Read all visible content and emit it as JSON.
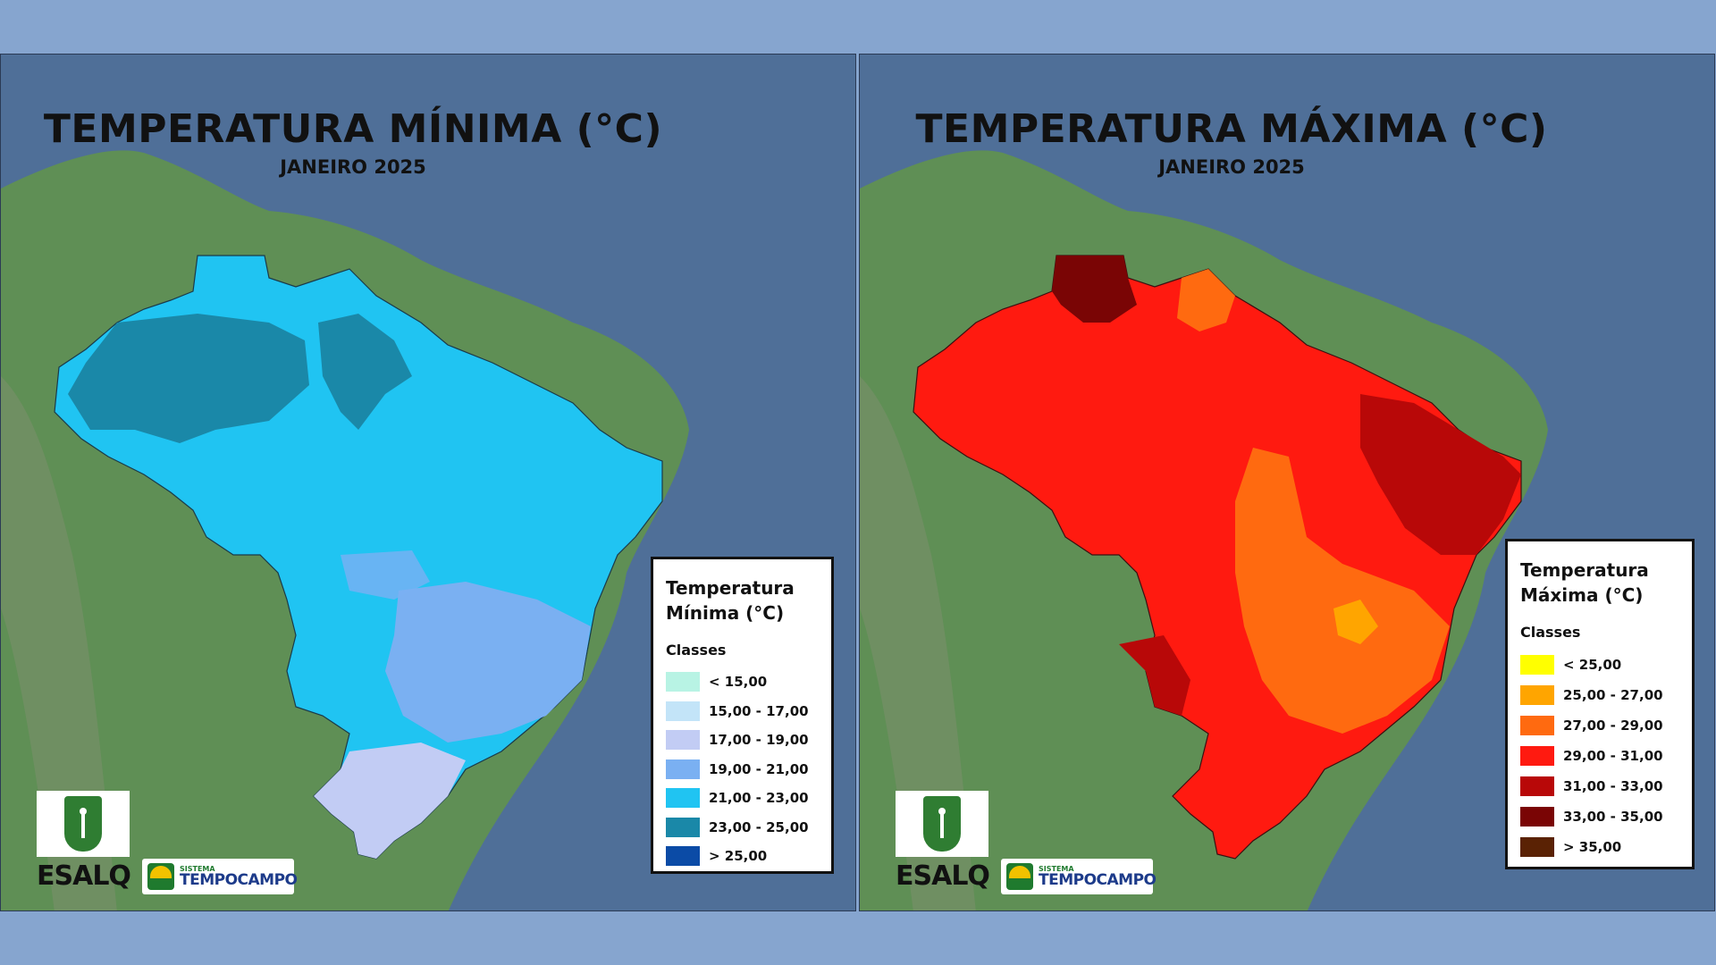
{
  "colors": {
    "page_background": "#86a5cf",
    "ocean": "#4f6f98",
    "land": "#5f8f55"
  },
  "maps": [
    {
      "id": "min",
      "title": "TEMPERATURA MÍNIMA (°C)",
      "subtitle": "JANEIRO 2025",
      "legend": {
        "title_line1": "Temperatura",
        "title_line2": "Mínima (°C)",
        "classes_label": "Classes",
        "items": [
          {
            "label": "< 15,00",
            "color": "#b8f3e4"
          },
          {
            "label": "15,00 - 17,00",
            "color": "#c3e4f8"
          },
          {
            "label": "17,00 - 19,00",
            "color": "#c2ccf4"
          },
          {
            "label": "19,00 - 21,00",
            "color": "#7ab0f2"
          },
          {
            "label": "21,00 - 23,00",
            "color": "#20c4f2"
          },
          {
            "label": "23,00 - 25,00",
            "color": "#1a88a8"
          },
          {
            "label": "> 25,00",
            "color": "#0b4ba6"
          }
        ]
      },
      "base_color": "#20c4f2"
    },
    {
      "id": "max",
      "title": "TEMPERATURA MÁXIMA (°C)",
      "subtitle": "JANEIRO 2025",
      "legend": {
        "title_line1": "Temperatura",
        "title_line2": "Máxima (°C)",
        "classes_label": "Classes",
        "items": [
          {
            "label": "< 25,00",
            "color": "#ffff00"
          },
          {
            "label": "25,00 - 27,00",
            "color": "#ffa500"
          },
          {
            "label": "27,00 - 29,00",
            "color": "#ff6a10"
          },
          {
            "label": "29,00 - 31,00",
            "color": "#ff1a10"
          },
          {
            "label": "31,00 - 33,00",
            "color": "#b80808"
          },
          {
            "label": "33,00 - 35,00",
            "color": "#7a0505"
          },
          {
            "label": "> 35,00",
            "color": "#5a2204"
          }
        ]
      },
      "base_color": "#ff1a10"
    }
  ],
  "logos": {
    "esalq": "ESALQ",
    "tempo_small": "SISTEMA",
    "tempo_big": "TEMPOCAMPO"
  }
}
